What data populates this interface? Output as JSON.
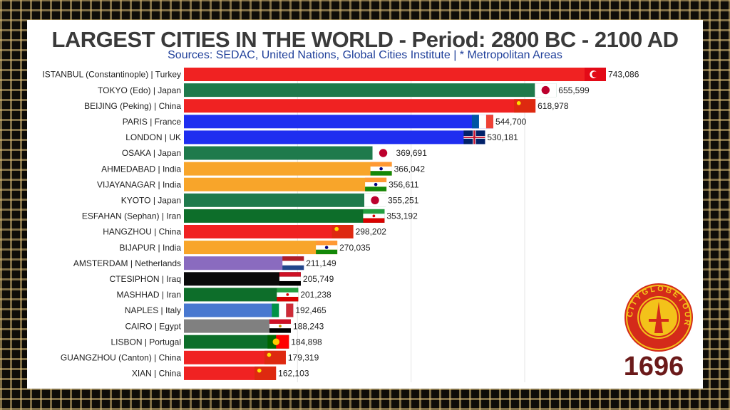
{
  "title": "LARGEST CITIES IN THE WORLD - Period: 2800 BC - 2100 AD",
  "subtitle": "Sources: SEDAC, United Nations, Global Cities Institute | * Metropolitan Areas",
  "year": "1696",
  "logo_text": "CITYGLOBETOUR",
  "colors": {
    "turkey": "#f02222",
    "japan": "#1f7a4c",
    "china": "#f02222",
    "france": "#1f2ef0",
    "uk": "#1f2ef0",
    "india": "#f8a52a",
    "iran": "#0d6e2a",
    "netherlands": "#8a6bbf",
    "iraq": "#0a0a0a",
    "italy": "#4878d0",
    "egypt": "#808080",
    "portugal": "#0d6e2a"
  },
  "chart_data": {
    "type": "bar",
    "orientation": "horizontal",
    "xlim": [
      0,
      743086
    ],
    "categories": [
      "ISTANBUL (Constantinople) | Turkey",
      "TOKYO (Edo) | Japan",
      "BEIJING (Peking) | China",
      "PARIS | France",
      "LONDON | UK",
      "OSAKA | Japan",
      "AHMEDABAD | India",
      "VIJAYANAGAR | India",
      "KYOTO | Japan",
      "ESFAHAN (Sephan) | Iran",
      "HANGZHOU | China",
      "BIJAPUR | India",
      "AMSTERDAM | Netherlands",
      "CTESIPHON | Iraq",
      "MASHHAD | Iran",
      "NAPLES | Italy",
      "CAIRO | Egypt",
      "LISBON | Portugal",
      "GUANGZHOU (Canton) | China",
      "XIAN | China"
    ],
    "values": [
      743086,
      655599,
      618978,
      544700,
      530181,
      369691,
      366042,
      356611,
      355251,
      353192,
      298202,
      270035,
      211149,
      205749,
      201238,
      192465,
      188243,
      184898,
      179319,
      162103
    ],
    "value_labels": [
      "743,086",
      "655,599",
      "618,978",
      "544,700",
      "530,181",
      "369,691",
      "366,042",
      "356,611",
      "355,251",
      "353,192",
      "298,202",
      "270,035",
      "211,149",
      "205,749",
      "201,238",
      "192,465",
      "188,243",
      "184,898",
      "179,319",
      "162,103"
    ],
    "countries": [
      "turkey",
      "japan",
      "china",
      "france",
      "uk",
      "japan",
      "india",
      "india",
      "japan",
      "iran",
      "china",
      "india",
      "netherlands",
      "iraq",
      "iran",
      "italy",
      "egypt",
      "portugal",
      "china",
      "china"
    ],
    "grid": true
  }
}
